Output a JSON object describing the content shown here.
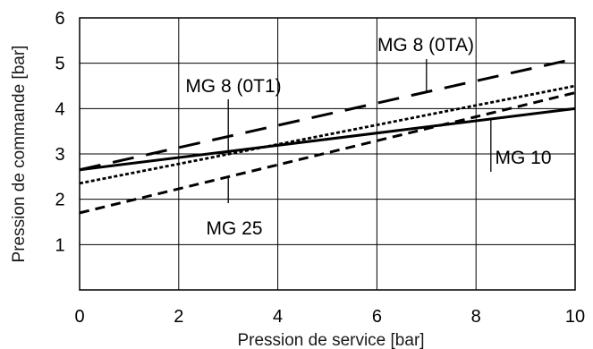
{
  "chart_data": {
    "type": "line",
    "xlabel": "Pression de service [bar]",
    "ylabel": "Pression de commande [bar]",
    "xlim": [
      0,
      10
    ],
    "ylim": [
      0,
      6
    ],
    "xticks": [
      0,
      2,
      4,
      6,
      8,
      10
    ],
    "yticks": [
      0,
      1,
      2,
      3,
      4,
      5,
      6
    ],
    "grid": true,
    "series": [
      {
        "name": "MG 10",
        "style": "solid",
        "x": [
          0,
          10
        ],
        "y": [
          2.65,
          4.0
        ]
      },
      {
        "name": "MG 8 (0T1)",
        "style": "dotted",
        "x": [
          0,
          10
        ],
        "y": [
          2.35,
          4.5
        ]
      },
      {
        "name": "MG 8 (0TA)",
        "style": "long-dash",
        "x": [
          0,
          10
        ],
        "y": [
          2.65,
          5.1
        ]
      },
      {
        "name": "MG 25",
        "style": "dashed",
        "x": [
          0,
          10
        ],
        "y": [
          1.7,
          4.35
        ]
      }
    ]
  }
}
